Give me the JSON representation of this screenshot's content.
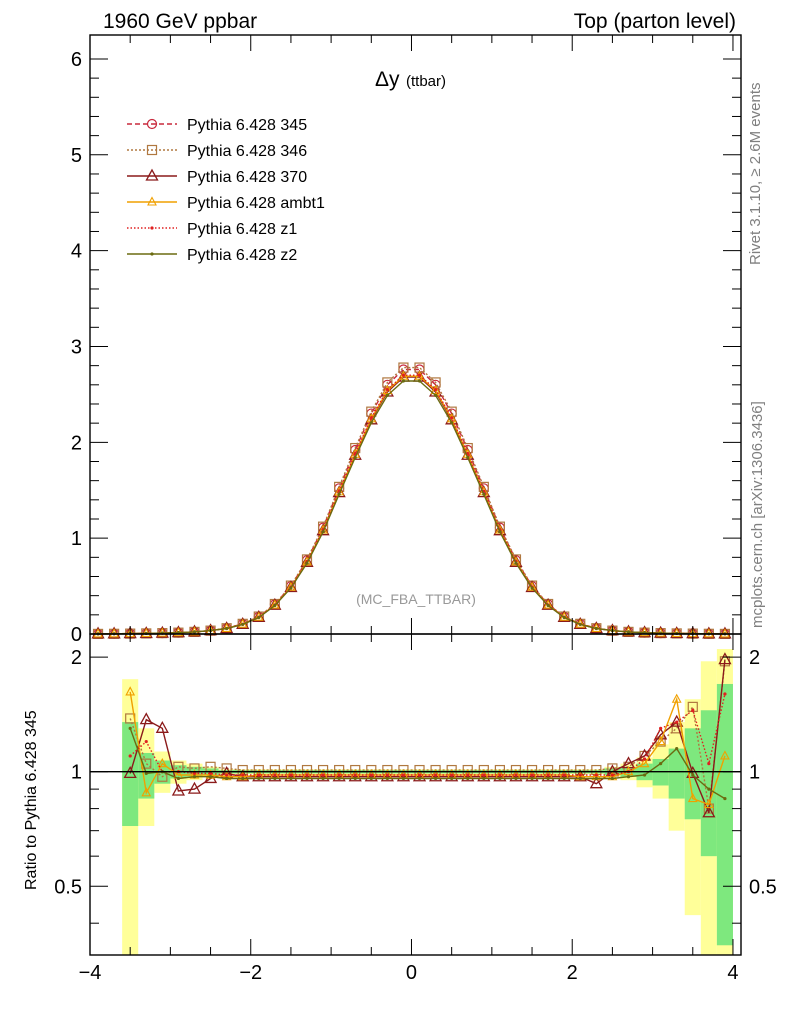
{
  "header": {
    "left": "1960 GeV ppbar",
    "right": "Top (parton level)"
  },
  "side_labels": {
    "rivet": "Rivet 3.1.10, ≥ 2.6M events",
    "mcplots": "mcplots.cern.ch [arXiv:1306.3436]"
  },
  "chart_data": [
    {
      "type": "line",
      "title": "Δy",
      "title_suffix": "(ttbar)",
      "watermark": "(MC_FBA_TTBAR)",
      "xlim": [
        -4.0,
        4.1
      ],
      "ylim": [
        0,
        6.25
      ],
      "yticks": [
        0,
        1,
        2,
        3,
        4,
        5,
        6
      ],
      "ytick_labels": [
        "0",
        "1",
        "2",
        "3",
        "4",
        "5",
        "6"
      ],
      "legend_position": "top-left",
      "x": [
        -3.9,
        -3.7,
        -3.5,
        -3.3,
        -3.1,
        -2.9,
        -2.7,
        -2.5,
        -2.3,
        -2.1,
        -1.9,
        -1.7,
        -1.5,
        -1.3,
        -1.1,
        -0.9,
        -0.7,
        -0.5,
        -0.3,
        -0.1,
        0.1,
        0.3,
        0.5,
        0.7,
        0.9,
        1.1,
        1.3,
        1.5,
        1.7,
        1.9,
        2.1,
        2.3,
        2.5,
        2.7,
        2.9,
        3.1,
        3.3,
        3.5,
        3.7,
        3.9
      ],
      "series": [
        {
          "name": "Pythia 6.428 345",
          "color": "#c8283c",
          "marker": "circle",
          "dash": "5,3",
          "values": [
            0.001,
            0.002,
            0.004,
            0.006,
            0.009,
            0.014,
            0.022,
            0.035,
            0.06,
            0.105,
            0.18,
            0.31,
            0.5,
            0.77,
            1.11,
            1.52,
            1.92,
            2.3,
            2.6,
            2.76,
            2.76,
            2.6,
            2.3,
            1.92,
            1.52,
            1.11,
            0.77,
            0.5,
            0.31,
            0.18,
            0.105,
            0.06,
            0.035,
            0.022,
            0.014,
            0.009,
            0.006,
            0.004,
            0.002,
            0.001
          ]
        },
        {
          "name": "Pythia 6.428 346",
          "color": "#b07840",
          "marker": "square",
          "dash": "2,2",
          "values": [
            0.001,
            0.002,
            0.004,
            0.006,
            0.009,
            0.014,
            0.022,
            0.035,
            0.06,
            0.106,
            0.182,
            0.313,
            0.505,
            0.778,
            1.12,
            1.535,
            1.94,
            2.32,
            2.625,
            2.78,
            2.78,
            2.625,
            2.32,
            1.94,
            1.535,
            1.12,
            0.778,
            0.505,
            0.313,
            0.182,
            0.106,
            0.06,
            0.035,
            0.022,
            0.014,
            0.009,
            0.006,
            0.004,
            0.002,
            0.001
          ]
        },
        {
          "name": "Pythia 6.428 370",
          "color": "#8b1a1a",
          "marker": "triangle",
          "dash": "",
          "values": [
            0.001,
            0.002,
            0.004,
            0.006,
            0.009,
            0.014,
            0.022,
            0.035,
            0.058,
            0.101,
            0.174,
            0.3,
            0.485,
            0.748,
            1.078,
            1.475,
            1.865,
            2.235,
            2.525,
            2.68,
            2.68,
            2.525,
            2.235,
            1.865,
            1.475,
            1.078,
            0.748,
            0.485,
            0.3,
            0.174,
            0.101,
            0.058,
            0.035,
            0.022,
            0.014,
            0.009,
            0.006,
            0.004,
            0.002,
            0.001
          ]
        },
        {
          "name": "Pythia 6.428 ambt1",
          "color": "#f0a000",
          "marker": "triangle-small",
          "dash": "",
          "values": [
            0.001,
            0.002,
            0.004,
            0.006,
            0.009,
            0.014,
            0.022,
            0.035,
            0.058,
            0.102,
            0.175,
            0.302,
            0.488,
            0.752,
            1.084,
            1.483,
            1.875,
            2.245,
            2.54,
            2.69,
            2.69,
            2.54,
            2.245,
            1.875,
            1.483,
            1.084,
            0.752,
            0.488,
            0.302,
            0.175,
            0.102,
            0.058,
            0.035,
            0.022,
            0.014,
            0.009,
            0.006,
            0.004,
            0.002,
            0.001
          ]
        },
        {
          "name": "Pythia 6.428 z1",
          "color": "#e02020",
          "marker": "dot",
          "dash": "1.5,2",
          "values": [
            0.001,
            0.002,
            0.004,
            0.006,
            0.009,
            0.014,
            0.022,
            0.035,
            0.058,
            0.102,
            0.176,
            0.303,
            0.49,
            0.755,
            1.088,
            1.49,
            1.882,
            2.255,
            2.55,
            2.7,
            2.7,
            2.55,
            2.255,
            1.882,
            1.49,
            1.088,
            0.755,
            0.49,
            0.303,
            0.176,
            0.102,
            0.058,
            0.035,
            0.022,
            0.014,
            0.009,
            0.006,
            0.004,
            0.002,
            0.001
          ]
        },
        {
          "name": "Pythia 6.428 z2",
          "color": "#6b6b10",
          "marker": "dot",
          "dash": "",
          "values": [
            0.001,
            0.002,
            0.004,
            0.006,
            0.009,
            0.014,
            0.022,
            0.035,
            0.057,
            0.1,
            0.172,
            0.297,
            0.48,
            0.74,
            1.066,
            1.458,
            1.842,
            2.205,
            2.49,
            2.64,
            2.64,
            2.49,
            2.205,
            1.842,
            1.458,
            1.066,
            0.74,
            0.48,
            0.297,
            0.172,
            0.1,
            0.057,
            0.035,
            0.022,
            0.014,
            0.009,
            0.006,
            0.004,
            0.002,
            0.001
          ]
        }
      ]
    },
    {
      "type": "line",
      "ylabel": "Ratio to Pythia 6.428 345",
      "xlim": [
        -4.0,
        4.1
      ],
      "ylim": [
        0.33,
        2.3
      ],
      "xticks": [
        -4,
        -2,
        0,
        2,
        4
      ],
      "xtick_labels": [
        "−4",
        "−2",
        "0",
        "2",
        "4"
      ],
      "yticks": [
        0.5,
        1,
        2
      ],
      "ytick_labels": [
        "0.5",
        "1",
        "2"
      ],
      "reference_line": 1,
      "band_colors": {
        "inner": "#7ee87e",
        "outer": "#ffff99"
      },
      "band_x": [
        -3.6,
        -3.4,
        -3.2,
        -3.0,
        -2.8,
        -2.6,
        -2.4,
        2.4,
        2.6,
        2.8,
        3.0,
        3.2,
        3.4,
        3.6,
        3.8,
        4.0
      ],
      "band_inner": [
        [
          0.72,
          1.35
        ],
        [
          0.85,
          1.12
        ],
        [
          0.93,
          1.07
        ],
        [
          0.96,
          1.04
        ],
        [
          0.97,
          1.03
        ],
        [
          0.98,
          1.02
        ],
        [
          0.99,
          1.01
        ],
        [
          0.98,
          1.02
        ],
        [
          0.97,
          1.03
        ],
        [
          0.95,
          1.05
        ],
        [
          0.92,
          1.08
        ],
        [
          0.85,
          1.15
        ],
        [
          0.75,
          1.3
        ],
        [
          0.6,
          1.45
        ],
        [
          0.35,
          1.7
        ]
      ],
      "band_outer": [
        [
          0.33,
          1.75
        ],
        [
          0.72,
          1.3
        ],
        [
          0.88,
          1.13
        ],
        [
          0.93,
          1.07
        ],
        [
          0.95,
          1.05
        ],
        [
          0.97,
          1.03
        ],
        [
          0.985,
          1.015
        ],
        [
          0.97,
          1.03
        ],
        [
          0.95,
          1.05
        ],
        [
          0.91,
          1.09
        ],
        [
          0.85,
          1.18
        ],
        [
          0.7,
          1.35
        ],
        [
          0.42,
          1.55
        ],
        [
          0.33,
          1.95
        ],
        [
          0.33,
          2.1
        ]
      ],
      "x": [
        -3.5,
        -3.3,
        -3.1,
        -2.9,
        -2.7,
        -2.5,
        -2.3,
        -2.1,
        -1.9,
        -1.7,
        -1.5,
        -1.3,
        -1.1,
        -0.9,
        -0.7,
        -0.5,
        -0.3,
        -0.1,
        0.1,
        0.3,
        0.5,
        0.7,
        0.9,
        1.1,
        1.3,
        1.5,
        1.7,
        1.9,
        2.1,
        2.3,
        2.5,
        2.7,
        2.9,
        3.1,
        3.3,
        3.5,
        3.7,
        3.9
      ],
      "series": [
        {
          "name": "Pythia 6.428 346",
          "color": "#b07840",
          "marker": "square",
          "dash": "2,2",
          "values": [
            1.38,
            1.05,
            0.97,
            1.03,
            1.02,
            1.03,
            1.02,
            1.01,
            1.01,
            1.01,
            1.01,
            1.01,
            1.01,
            1.01,
            1.01,
            1.01,
            1.01,
            1.01,
            1.01,
            1.01,
            1.01,
            1.01,
            1.01,
            1.01,
            1.01,
            1.01,
            1.01,
            1.01,
            1.01,
            1.01,
            1.02,
            1.03,
            1.1,
            1.2,
            1.3,
            1.48,
            0.8,
            1.95
          ]
        },
        {
          "name": "Pythia 6.428 370",
          "color": "#8b1a1a",
          "marker": "triangle",
          "dash": "",
          "values": [
            0.99,
            1.37,
            1.3,
            0.89,
            0.9,
            0.96,
            0.99,
            0.97,
            0.97,
            0.97,
            0.97,
            0.97,
            0.97,
            0.97,
            0.97,
            0.97,
            0.97,
            0.97,
            0.97,
            0.97,
            0.97,
            0.97,
            0.97,
            0.97,
            0.97,
            0.97,
            0.97,
            0.97,
            0.97,
            0.93,
            1.0,
            1.05,
            1.1,
            1.25,
            1.35,
            0.99,
            0.78,
            1.97
          ]
        },
        {
          "name": "Pythia 6.428 ambt1",
          "color": "#f0a000",
          "marker": "triangle-small",
          "dash": "",
          "values": [
            1.62,
            0.88,
            1.05,
            0.98,
            0.98,
            0.98,
            0.97,
            0.97,
            0.98,
            0.98,
            0.98,
            0.98,
            0.98,
            0.98,
            0.98,
            0.98,
            0.98,
            0.98,
            0.98,
            0.98,
            0.98,
            0.98,
            0.98,
            0.98,
            0.98,
            0.98,
            0.98,
            0.98,
            0.97,
            0.97,
            0.97,
            1.0,
            1.05,
            1.2,
            1.55,
            0.85,
            0.82,
            1.1
          ]
        },
        {
          "name": "Pythia 6.428 z1",
          "color": "#e02020",
          "marker": "dot",
          "dash": "1.5,2",
          "values": [
            1.1,
            1.2,
            1.0,
            1.0,
            0.99,
            0.99,
            0.98,
            0.98,
            0.98,
            0.98,
            0.98,
            0.98,
            0.98,
            0.98,
            0.98,
            0.98,
            0.98,
            0.98,
            0.98,
            0.98,
            0.98,
            0.98,
            0.98,
            0.98,
            0.98,
            0.98,
            0.98,
            0.98,
            0.98,
            0.98,
            0.98,
            1.0,
            1.08,
            1.3,
            1.35,
            1.45,
            1.05,
            1.6
          ]
        },
        {
          "name": "Pythia 6.428 z2",
          "color": "#6b6b10",
          "marker": "dot",
          "dash": "",
          "values": [
            1.3,
            0.99,
            1.0,
            0.96,
            0.97,
            0.97,
            0.96,
            0.96,
            0.96,
            0.96,
            0.96,
            0.96,
            0.96,
            0.96,
            0.96,
            0.96,
            0.96,
            0.96,
            0.96,
            0.96,
            0.96,
            0.96,
            0.96,
            0.96,
            0.96,
            0.96,
            0.96,
            0.96,
            0.96,
            0.96,
            0.96,
            0.97,
            0.98,
            1.05,
            1.15,
            0.98,
            0.9,
            0.85
          ]
        }
      ]
    }
  ]
}
